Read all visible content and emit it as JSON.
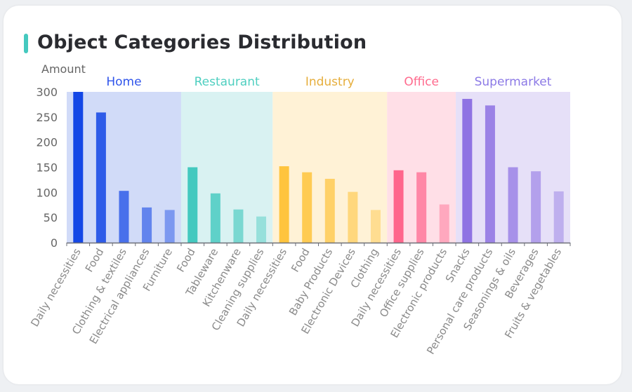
{
  "title": "Object Categories Distribution",
  "chart_data": {
    "type": "bar",
    "ylabel": "Amount",
    "ylim": [
      0,
      300
    ],
    "yticks": [
      "0",
      "50",
      "100",
      "150",
      "200",
      "250",
      "300"
    ],
    "legend": "none",
    "grid": false,
    "groups": [
      {
        "name": "Home",
        "color": "#1447e6",
        "band_color": "#d1dbf8",
        "label_color": "#2f54eb",
        "categories": [
          "Daily necessities",
          "Food",
          "Clothing & textiles",
          "Electrical appliances",
          "Furniture"
        ],
        "values": [
          300,
          259,
          103,
          70,
          65
        ]
      },
      {
        "name": "Restaurant",
        "color": "#44c9bf",
        "band_color": "#d9f2f2",
        "label_color": "#4fcfc0",
        "categories": [
          "Food",
          "Tableware",
          "Kitchenware",
          "Cleaning supplies"
        ],
        "values": [
          150,
          98,
          66,
          52
        ]
      },
      {
        "name": "Industry",
        "color": "#ffc43d",
        "band_color": "#fff2d6",
        "label_color": "#e6ae3c",
        "categories": [
          "Daily necessities",
          "Food",
          "Baby Products",
          "Electronic Devices",
          "Clothing"
        ],
        "values": [
          152,
          140,
          127,
          101,
          65
        ]
      },
      {
        "name": "Office",
        "color": "#ff668c",
        "band_color": "#ffdfe7",
        "label_color": "#ff6b8e",
        "categories": [
          "Daily necessities",
          "Office supplies",
          "Electronic products"
        ],
        "values": [
          144,
          140,
          76
        ]
      },
      {
        "name": "Supermarket",
        "color": "#8f73e3",
        "band_color": "#e6e0f8",
        "label_color": "#8c7ae6",
        "categories": [
          "Snacks",
          "Personal care products",
          "Seasonings & oils",
          "Beverages",
          "Fruits & vegetables"
        ],
        "values": [
          286,
          273,
          150,
          142,
          102
        ]
      }
    ]
  }
}
